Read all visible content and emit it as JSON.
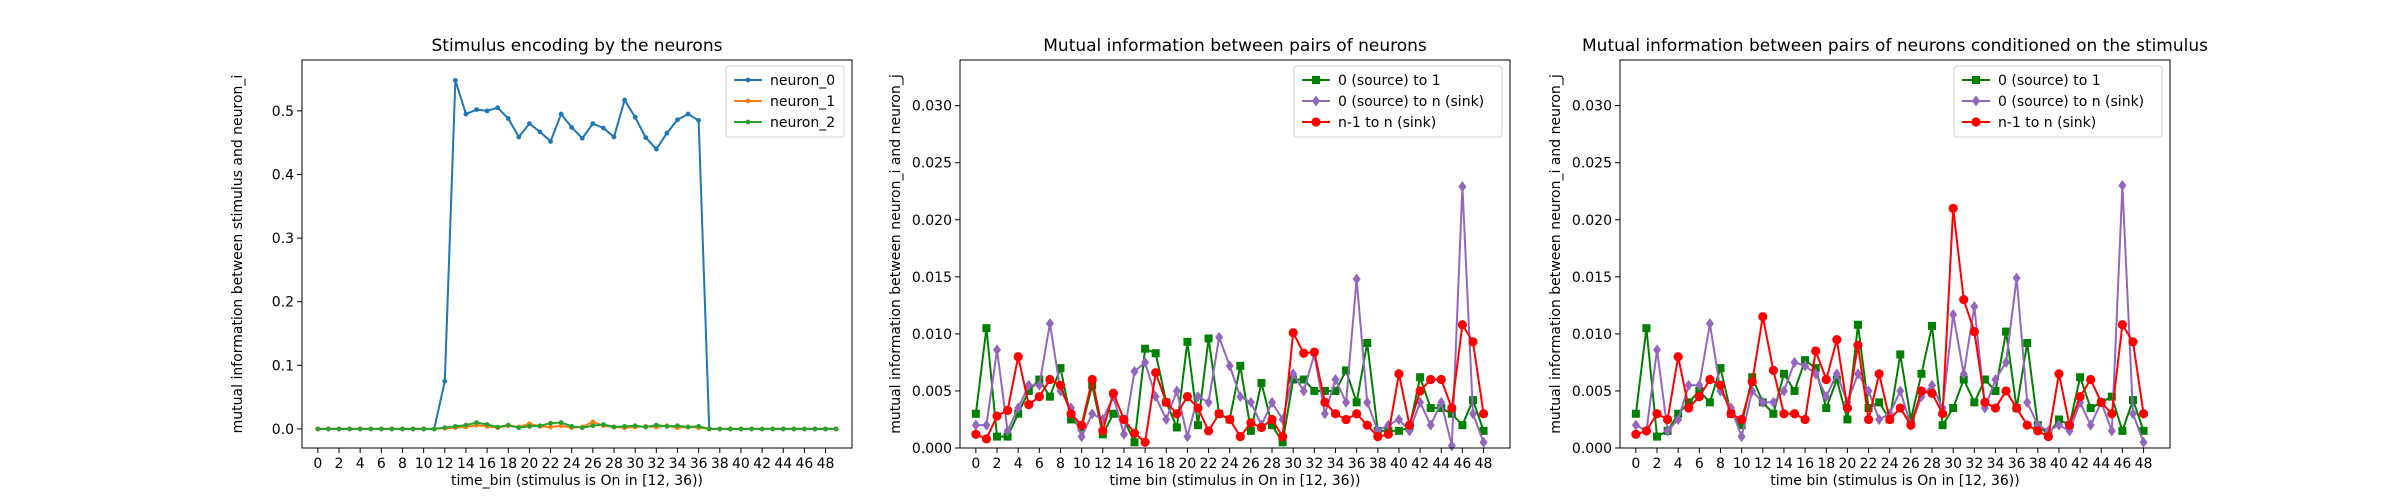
{
  "chart_data": [
    {
      "type": "line",
      "title": "Stimulus encoding by the neurons",
      "xlabel": "time_bin (stimulus is On in [12, 36))",
      "ylabel": "mutual information between stimulus and neuron_i",
      "xlim": [
        -1.5,
        50.5
      ],
      "ylim": [
        -0.03,
        0.58
      ],
      "xticks": [
        0,
        2,
        4,
        6,
        8,
        10,
        12,
        14,
        16,
        18,
        20,
        22,
        24,
        26,
        28,
        30,
        32,
        34,
        36,
        38,
        40,
        42,
        44,
        46,
        48
      ],
      "yticks": [
        0.0,
        0.1,
        0.2,
        0.3,
        0.4,
        0.5
      ],
      "ytick_labels": [
        "0.0",
        "0.1",
        "0.2",
        "0.3",
        "0.4",
        "0.5"
      ],
      "legend": "upper right",
      "series": [
        {
          "name": "neuron_0",
          "color": "#1f77b4",
          "marker": "dot",
          "values": [
            0.0,
            0.0,
            0.0,
            0.0,
            0.0,
            0.0,
            0.0,
            0.0,
            0.0,
            0.0,
            0.0,
            0.0,
            0.075,
            0.548,
            0.495,
            0.502,
            0.5,
            0.505,
            0.488,
            0.459,
            0.48,
            0.467,
            0.452,
            0.495,
            0.474,
            0.457,
            0.48,
            0.473,
            0.459,
            0.517,
            0.49,
            0.458,
            0.44,
            0.465,
            0.486,
            0.495,
            0.485,
            0.0,
            0.0,
            0.0,
            0.0,
            0.0,
            0.0,
            0.0,
            0.0,
            0.0,
            0.0,
            0.0,
            0.0,
            0.0
          ]
        },
        {
          "name": "neuron_1",
          "color": "#ff7f0e",
          "marker": "dot",
          "values": [
            0.0,
            0.0,
            0.0,
            0.0,
            0.0,
            0.0,
            0.0,
            0.0,
            0.0,
            0.0,
            0.0,
            0.0,
            0.001,
            0.002,
            0.003,
            0.006,
            0.004,
            0.002,
            0.005,
            0.003,
            0.008,
            0.004,
            0.003,
            0.005,
            0.002,
            0.003,
            0.011,
            0.005,
            0.003,
            0.002,
            0.003,
            0.004,
            0.003,
            0.005,
            0.002,
            0.003,
            0.002,
            0.0,
            0.0,
            0.0,
            0.0,
            0.0,
            0.0,
            0.0,
            0.0,
            0.0,
            0.0,
            0.0,
            0.0,
            0.0
          ]
        },
        {
          "name": "neuron_2",
          "color": "#2ca02c",
          "marker": "dot",
          "values": [
            0.0,
            0.0,
            0.0,
            0.0,
            0.0,
            0.0,
            0.0,
            0.0,
            0.0,
            0.0,
            0.0,
            0.0,
            0.002,
            0.004,
            0.006,
            0.01,
            0.007,
            0.003,
            0.006,
            0.002,
            0.004,
            0.005,
            0.009,
            0.01,
            0.004,
            0.002,
            0.005,
            0.007,
            0.003,
            0.004,
            0.005,
            0.003,
            0.006,
            0.004,
            0.005,
            0.003,
            0.004,
            0.0,
            0.0,
            0.0,
            0.0,
            0.0,
            0.0,
            0.0,
            0.0,
            0.0,
            0.0,
            0.0,
            0.0,
            0.0
          ]
        }
      ]
    },
    {
      "type": "line",
      "title": "Mutual information between pairs of neurons",
      "xlabel": "time bin (stimulus in On in [12, 36))",
      "ylabel": "mutual information between neuron_i and neuron_j",
      "xlim": [
        -1.5,
        50.5
      ],
      "ylim": [
        0.0,
        0.034
      ],
      "xticks": [
        0,
        2,
        4,
        6,
        8,
        10,
        12,
        14,
        16,
        18,
        20,
        22,
        24,
        26,
        28,
        30,
        32,
        34,
        36,
        38,
        40,
        42,
        44,
        46,
        48
      ],
      "yticks": [
        0.0,
        0.005,
        0.01,
        0.015,
        0.02,
        0.025,
        0.03
      ],
      "ytick_labels": [
        "0.000",
        "0.005",
        "0.010",
        "0.015",
        "0.020",
        "0.025",
        "0.030"
      ],
      "legend": "upper right",
      "series": [
        {
          "name": "0 (source) to 1",
          "color": "#008000",
          "marker": "square",
          "values": [
            0.003,
            0.0105,
            0.001,
            0.001,
            0.003,
            0.005,
            0.006,
            0.0045,
            0.007,
            0.0025,
            0.0018,
            0.0055,
            0.0012,
            0.003,
            0.0025,
            0.0005,
            0.0087,
            0.0083,
            0.004,
            0.0018,
            0.0093,
            0.002,
            0.0096,
            0.003,
            0.0025,
            0.0072,
            0.0015,
            0.0057,
            0.002,
            0.0005,
            0.006,
            0.006,
            0.005,
            0.005,
            0.005,
            0.0068,
            0.004,
            0.0092,
            0.0015,
            0.0015,
            0.0015,
            0.0018,
            0.0062,
            0.0035,
            0.0035,
            0.003,
            0.002,
            0.0042,
            0.0015
          ]
        },
        {
          "name": "0 (source) to n (sink)",
          "color": "#9467bd",
          "marker": "diamond",
          "values": [
            0.002,
            0.002,
            0.0086,
            0.0015,
            0.0035,
            0.0055,
            0.0055,
            0.0109,
            0.005,
            0.0035,
            0.001,
            0.003,
            0.0025,
            0.0045,
            0.0012,
            0.0067,
            0.0075,
            0.0045,
            0.0025,
            0.005,
            0.001,
            0.0045,
            0.004,
            0.0097,
            0.0072,
            0.0045,
            0.004,
            0.002,
            0.004,
            0.0025,
            0.0065,
            0.005,
            0.0082,
            0.003,
            0.006,
            0.004,
            0.0148,
            0.004,
            0.0015,
            0.002,
            0.0025,
            0.0015,
            0.004,
            0.002,
            0.004,
            0.0002,
            0.0229,
            0.003,
            0.0005
          ]
        },
        {
          "name": "n-1 to n (sink)",
          "color": "#ff0000",
          "marker": "circle",
          "values": [
            0.0012,
            0.0008,
            0.0028,
            0.0033,
            0.008,
            0.0038,
            0.0045,
            0.006,
            0.0055,
            0.003,
            0.002,
            0.006,
            0.0015,
            0.0048,
            0.0025,
            0.0013,
            0.0005,
            0.0066,
            0.004,
            0.003,
            0.0045,
            0.0035,
            0.0015,
            0.003,
            0.0025,
            0.001,
            0.0022,
            0.0018,
            0.0025,
            0.001,
            0.0101,
            0.0083,
            0.0084,
            0.004,
            0.003,
            0.0025,
            0.003,
            0.002,
            0.001,
            0.0012,
            0.0065,
            0.002,
            0.005,
            0.006,
            0.006,
            0.0035,
            0.0108,
            0.0093,
            0.003
          ]
        }
      ]
    },
    {
      "type": "line",
      "title": "Mutual information between pairs of neurons conditioned on the stimulus",
      "xlabel": "time bin (stimulus is On in [12, 36))",
      "ylabel": "mutual information between neuron_i and neuron_j",
      "xlim": [
        -1.5,
        50.5
      ],
      "ylim": [
        0.0,
        0.034
      ],
      "xticks": [
        0,
        2,
        4,
        6,
        8,
        10,
        12,
        14,
        16,
        18,
        20,
        22,
        24,
        26,
        28,
        30,
        32,
        34,
        36,
        38,
        40,
        42,
        44,
        46,
        48
      ],
      "yticks": [
        0.0,
        0.005,
        0.01,
        0.015,
        0.02,
        0.025,
        0.03
      ],
      "ytick_labels": [
        "0.000",
        "0.005",
        "0.010",
        "0.015",
        "0.020",
        "0.025",
        "0.030"
      ],
      "legend": "upper right",
      "series": [
        {
          "name": "0 (source) to 1",
          "color": "#008000",
          "marker": "square",
          "values": [
            0.003,
            0.0105,
            0.001,
            0.0015,
            0.003,
            0.004,
            0.005,
            0.004,
            0.007,
            0.003,
            0.002,
            0.0062,
            0.004,
            0.003,
            0.0065,
            0.005,
            0.0077,
            0.007,
            0.0035,
            0.006,
            0.0025,
            0.0108,
            0.0035,
            0.004,
            0.0025,
            0.0082,
            0.0025,
            0.0065,
            0.0107,
            0.002,
            0.0035,
            0.006,
            0.004,
            0.006,
            0.005,
            0.0102,
            0.0035,
            0.0092,
            0.002,
            0.0012,
            0.0025,
            0.002,
            0.0062,
            0.0035,
            0.004,
            0.0045,
            0.0015,
            0.0042,
            0.0015
          ]
        },
        {
          "name": "0 (source) to n (sink)",
          "color": "#9467bd",
          "marker": "diamond",
          "values": [
            0.002,
            0.0015,
            0.0086,
            0.0015,
            0.0025,
            0.0055,
            0.0055,
            0.0109,
            0.005,
            0.0035,
            0.001,
            0.005,
            0.004,
            0.004,
            0.005,
            0.0075,
            0.0072,
            0.0065,
            0.0045,
            0.0065,
            0.004,
            0.0065,
            0.005,
            0.0025,
            0.003,
            0.005,
            0.002,
            0.0045,
            0.0055,
            0.0035,
            0.0117,
            0.0065,
            0.0124,
            0.0035,
            0.006,
            0.0075,
            0.0149,
            0.004,
            0.002,
            0.0015,
            0.002,
            0.0015,
            0.004,
            0.002,
            0.004,
            0.0015,
            0.023,
            0.003,
            0.0005
          ]
        },
        {
          "name": "n-1 to n (sink)",
          "color": "#ff0000",
          "marker": "circle",
          "values": [
            0.0012,
            0.0015,
            0.003,
            0.0025,
            0.008,
            0.0035,
            0.0045,
            0.006,
            0.0055,
            0.003,
            0.0025,
            0.0058,
            0.0115,
            0.0068,
            0.003,
            0.003,
            0.0025,
            0.0085,
            0.006,
            0.0095,
            0.0035,
            0.009,
            0.0025,
            0.0065,
            0.0025,
            0.0035,
            0.002,
            0.005,
            0.0048,
            0.003,
            0.021,
            0.013,
            0.0102,
            0.004,
            0.0035,
            0.005,
            0.0035,
            0.002,
            0.0015,
            0.001,
            0.0065,
            0.002,
            0.0045,
            0.006,
            0.004,
            0.003,
            0.0108,
            0.0093,
            0.003
          ]
        }
      ]
    }
  ]
}
